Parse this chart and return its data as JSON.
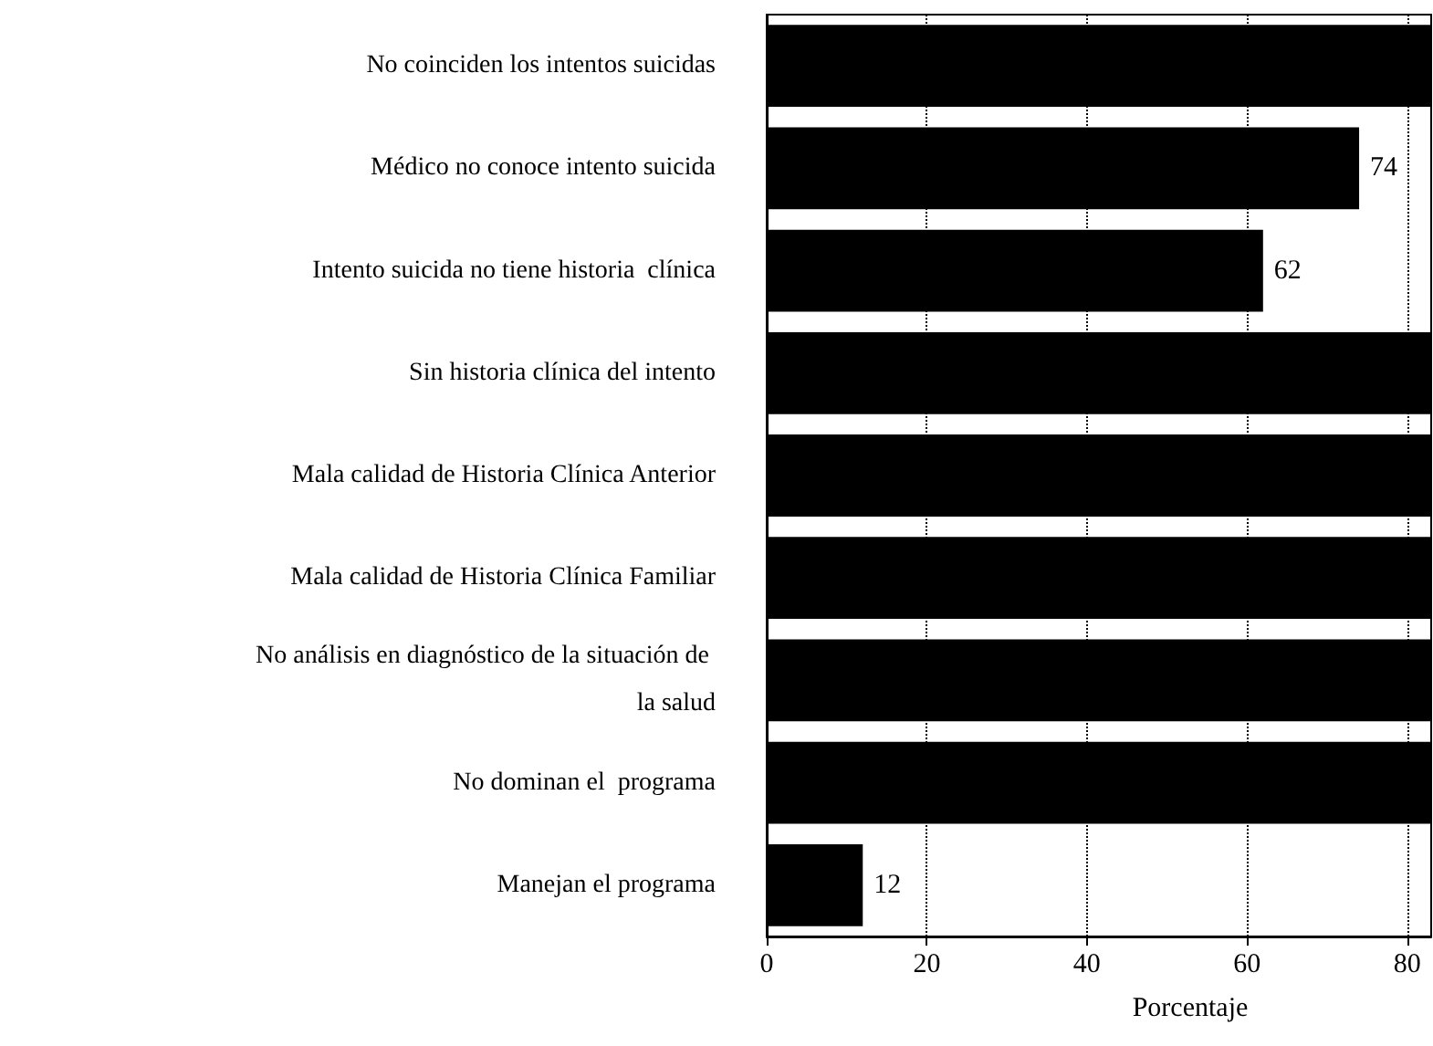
{
  "chart_data": {
    "type": "bar",
    "orientation": "horizontal",
    "xlabel": "Porcentaje",
    "categories": [
      "No coinciden los intentos suicidas",
      "Médico no conoce intento suicida",
      "Intento suicida no tiene historia  clínica",
      "Sin historia clínica del intento",
      "Mala calidad de Historia Clínica Anterior",
      "Mala calidad de Historia Clínica Familiar",
      "No análisis en diagnóstico de la situación de la salud",
      "No dominan el  programa",
      "Manejan el programa"
    ],
    "values": [
      83,
      74,
      62,
      83,
      83,
      83,
      83,
      83,
      12
    ],
    "value_labels": [
      null,
      "74",
      "62",
      null,
      null,
      null,
      null,
      null,
      "12"
    ],
    "color": "#000000",
    "xlim": [
      0,
      83
    ],
    "xticks": [
      0,
      20,
      40,
      60,
      80
    ],
    "grid": "x"
  }
}
